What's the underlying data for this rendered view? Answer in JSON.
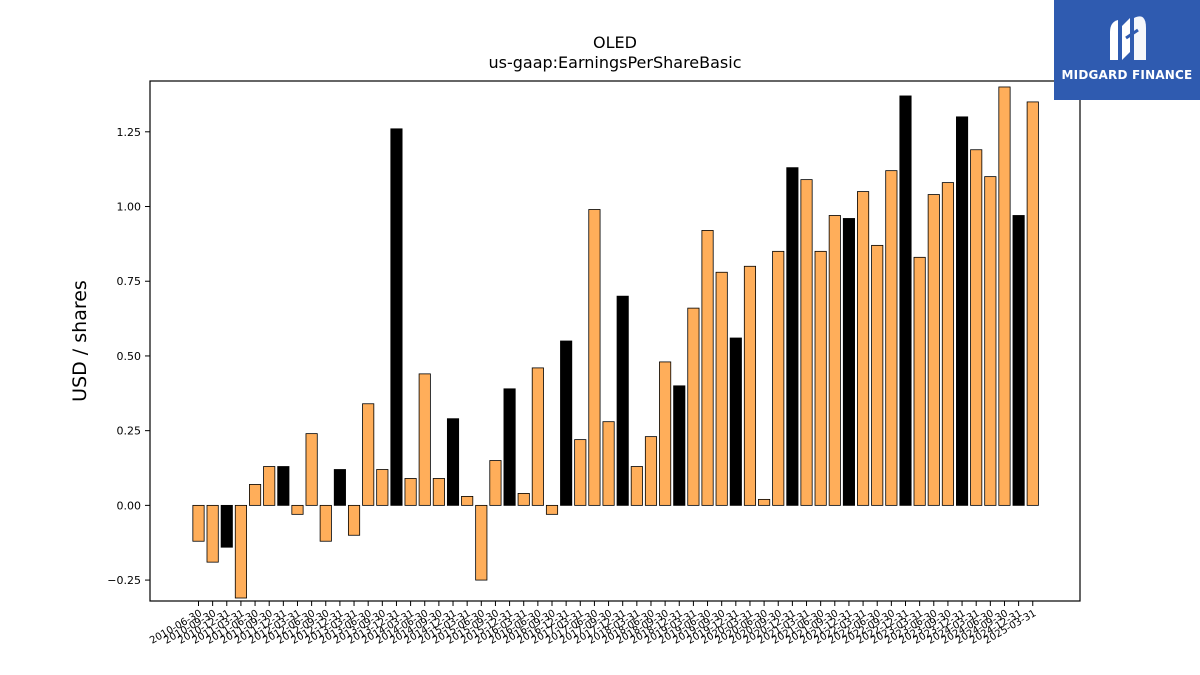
{
  "brand": {
    "name": "MIDGARD FINANCE",
    "bg": "#2f5bb0",
    "text_color": "#ffffff",
    "icon": "midgard-logo-icon"
  },
  "chart_data": {
    "type": "bar",
    "title": "OLED",
    "subtitle": "us-gaap:EarningsPerShareBasic",
    "xlabel": "",
    "ylabel": "USD / shares",
    "ylim": [
      -0.32,
      1.42
    ],
    "yticks": [
      -0.25,
      0.0,
      0.25,
      0.5,
      0.75,
      1.0,
      1.25
    ],
    "ytick_labels": [
      "−0.25",
      "0.00",
      "0.25",
      "0.50",
      "0.75",
      "1.00",
      "1.25"
    ],
    "grid": false,
    "legend": "none",
    "colors": {
      "quarterly": "#ffae5a",
      "annual": "#000000",
      "edge": "#000000"
    },
    "categories": [
      "2010-06-30",
      "2010-09-30",
      "2010-12-31",
      "2011-03-31",
      "2011-06-30",
      "2011-09-30",
      "2011-12-31",
      "2012-03-31",
      "2012-06-30",
      "2012-09-30",
      "2012-12-31",
      "2013-03-31",
      "2013-06-30",
      "2013-09-30",
      "2013-12-31",
      "2014-03-31",
      "2014-06-30",
      "2014-09-30",
      "2014-12-31",
      "2015-03-31",
      "2015-06-30",
      "2015-09-30",
      "2015-12-31",
      "2016-03-31",
      "2016-06-30",
      "2016-09-30",
      "2016-12-31",
      "2017-03-31",
      "2017-06-30",
      "2017-09-30",
      "2017-12-31",
      "2018-03-31",
      "2018-06-30",
      "2018-09-30",
      "2018-12-31",
      "2019-03-31",
      "2019-06-30",
      "2019-09-30",
      "2019-12-31",
      "2020-03-31",
      "2020-06-30",
      "2020-09-30",
      "2020-12-31",
      "2021-03-31",
      "2021-06-30",
      "2021-09-30",
      "2021-12-31",
      "2022-03-31",
      "2022-06-30",
      "2022-09-30",
      "2022-12-31",
      "2023-03-31",
      "2023-06-30",
      "2023-09-30",
      "2023-12-31",
      "2024-03-31",
      "2024-06-30",
      "2024-09-30",
      "2024-12-31",
      "2025-03-31"
    ],
    "values": [
      -0.12,
      -0.19,
      -0.14,
      -0.31,
      0.07,
      0.13,
      0.13,
      -0.03,
      0.24,
      -0.12,
      0.12,
      -0.1,
      0.34,
      0.12,
      1.26,
      0.09,
      0.44,
      0.09,
      0.29,
      0.03,
      -0.25,
      0.15,
      0.39,
      0.04,
      0.46,
      -0.03,
      0.55,
      0.22,
      0.99,
      0.28,
      0.7,
      0.13,
      0.23,
      0.48,
      0.4,
      0.66,
      0.92,
      0.78,
      0.56,
      0.8,
      0.02,
      0.85,
      1.13,
      1.09,
      0.85,
      0.97,
      0.96,
      1.05,
      0.87,
      1.12,
      1.37,
      0.83,
      1.04,
      1.08,
      1.3,
      1.19,
      1.1,
      1.4,
      0.97,
      1.35
    ],
    "annual": [
      false,
      false,
      true,
      false,
      false,
      false,
      true,
      false,
      false,
      false,
      true,
      false,
      false,
      false,
      true,
      false,
      false,
      false,
      true,
      false,
      false,
      false,
      true,
      false,
      false,
      false,
      true,
      false,
      false,
      false,
      true,
      false,
      false,
      false,
      true,
      false,
      false,
      false,
      true,
      false,
      false,
      false,
      true,
      false,
      false,
      false,
      true,
      false,
      false,
      false,
      true,
      false,
      false,
      false,
      true,
      false,
      false,
      false,
      true,
      false
    ]
  }
}
